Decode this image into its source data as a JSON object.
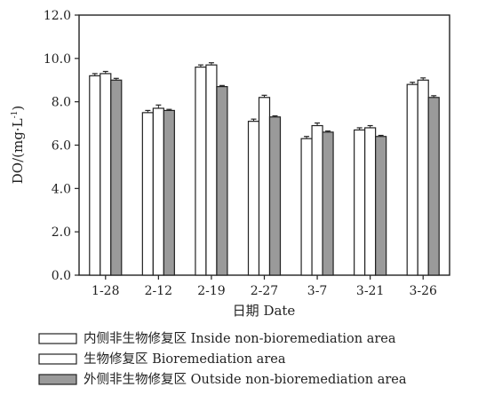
{
  "chart_data": {
    "type": "bar",
    "ylabel_main": "DO/(mg·L",
    "ylabel_sup": "-1",
    "ylabel_close": ")",
    "xlabel": "日期  Date",
    "categories": [
      "1-28",
      "2-12",
      "2-19",
      "2-27",
      "3-7",
      "3-21",
      "3-26"
    ],
    "ylim": [
      0,
      12
    ],
    "yticks": [
      "0.0",
      "2.0",
      "4.0",
      "6.0",
      "8.0",
      "10.0",
      "12.0"
    ],
    "series": [
      {
        "name": "内侧非生物修复区  Inside non-bioremediation area",
        "fill": "#ffffff",
        "values": [
          9.2,
          7.5,
          9.6,
          7.1,
          6.3,
          6.7,
          8.8
        ],
        "errors": [
          0.1,
          0.1,
          0.1,
          0.1,
          0.1,
          0.1,
          0.1
        ]
      },
      {
        "name": "生物修复区  Bioremediation area",
        "fill": "#ffffff",
        "values": [
          9.3,
          7.7,
          9.7,
          8.2,
          6.9,
          6.8,
          9.0
        ],
        "errors": [
          0.1,
          0.15,
          0.1,
          0.1,
          0.12,
          0.1,
          0.1
        ]
      },
      {
        "name": "外侧非生物修复区  Outside non-bioremediation area",
        "fill": "#9a9a9a",
        "values": [
          9.0,
          7.6,
          8.7,
          7.3,
          6.6,
          6.4,
          8.2
        ],
        "errors": [
          0.08,
          0.05,
          0.05,
          0.05,
          0.05,
          0.05,
          0.08
        ]
      }
    ],
    "legend_position": "bottom"
  }
}
